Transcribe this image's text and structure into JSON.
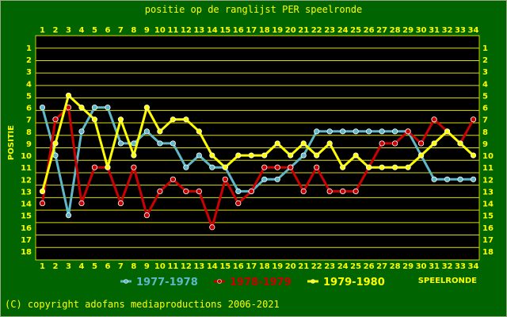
{
  "chart_data": {
    "type": "line",
    "title": "positie op de ranglijst PER speelronde",
    "xlabel": "SPEELRONDE",
    "ylabel": "POSITIE",
    "x": [
      1,
      2,
      3,
      4,
      5,
      6,
      7,
      8,
      9,
      10,
      11,
      12,
      13,
      14,
      15,
      16,
      17,
      18,
      19,
      20,
      21,
      22,
      23,
      24,
      25,
      26,
      27,
      28,
      29,
      30,
      31,
      32,
      33,
      34
    ],
    "y_ticks": [
      1,
      2,
      3,
      4,
      5,
      6,
      7,
      8,
      9,
      10,
      11,
      12,
      13,
      14,
      15,
      16,
      17,
      18
    ],
    "ylim": [
      18,
      1
    ],
    "y_inverted": true,
    "grid": true,
    "legend_position": "bottom",
    "series": [
      {
        "name": "1977-1978",
        "color": "#5fb8c8",
        "values": [
          6,
          10,
          15,
          8,
          6,
          6,
          9,
          9,
          8,
          9,
          9,
          11,
          10,
          11,
          11,
          13,
          13,
          12,
          12,
          11,
          10,
          8,
          8,
          8,
          8,
          8,
          8,
          8,
          8,
          10,
          12,
          12,
          12,
          12
        ]
      },
      {
        "name": "1978-1979",
        "color": "#cc0000",
        "values": [
          14,
          7,
          6,
          14,
          11,
          11,
          14,
          11,
          15,
          13,
          12,
          13,
          13,
          16,
          12,
          14,
          13,
          11,
          11,
          11,
          13,
          11,
          13,
          13,
          13,
          11,
          9,
          9,
          8,
          9,
          7,
          8,
          9,
          7
        ]
      },
      {
        "name": "1979-1980",
        "color": "#ffff00",
        "values": [
          13,
          9,
          5,
          6,
          7,
          11,
          7,
          10,
          6,
          8,
          7,
          7,
          8,
          10,
          11,
          10,
          10,
          10,
          9,
          10,
          9,
          10,
          9,
          11,
          10,
          11,
          11,
          11,
          11,
          10,
          9,
          8,
          9,
          10
        ]
      }
    ]
  },
  "copyright": "(C) copyright adofans mediaproductions 2006-2021"
}
